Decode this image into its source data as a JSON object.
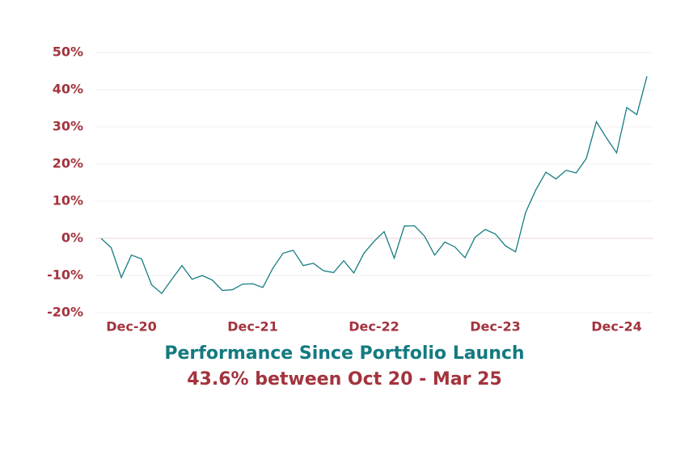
{
  "chart_data": {
    "type": "line",
    "title": "Performance Since Portfolio Launch",
    "subtitle": "43.6% between Oct 20 - Mar 25",
    "categories": [
      null,
      null,
      null,
      "Dec-20",
      null,
      null,
      null,
      null,
      null,
      null,
      null,
      null,
      null,
      null,
      null,
      "Dec-21",
      null,
      null,
      null,
      null,
      null,
      null,
      null,
      null,
      null,
      null,
      null,
      "Dec-22",
      null,
      null,
      null,
      null,
      null,
      null,
      null,
      null,
      null,
      null,
      null,
      "Dec-23",
      null,
      null,
      null,
      null,
      null,
      null,
      null,
      null,
      null,
      null,
      null,
      "Dec-24",
      null,
      null,
      null
    ],
    "series": [
      {
        "name": null,
        "color": "#167c82",
        "values": [
          0,
          -2.5,
          -10.5,
          -4.5,
          -5.5,
          -12.5,
          -14.8,
          -11,
          -7.3,
          -11,
          -10,
          -11.2,
          -14,
          -13.8,
          -12.3,
          -12.2,
          -13.2,
          -8,
          -4,
          -3.2,
          -7.3,
          -6.7,
          -8.7,
          -9.2,
          -6,
          -9.3,
          -4,
          -0.8,
          1.8,
          -5.3,
          3.3,
          3.4,
          0.6,
          -4.5,
          -1,
          -2.3,
          -5.2,
          0.3,
          2.4,
          1.2,
          -2,
          -3.6,
          7,
          13,
          17.8,
          16,
          18.3,
          17.6,
          21.5,
          31.4,
          27,
          23,
          35.2,
          33.3,
          43.6
        ]
      }
    ],
    "ylim": [
      -20,
      50
    ],
    "yticks": [
      {
        "value": -20,
        "label": "-20%"
      },
      {
        "value": -10,
        "label": "-10%"
      },
      {
        "value": 0,
        "label": "0%"
      },
      {
        "value": 10,
        "label": "10%"
      },
      {
        "value": 20,
        "label": "20%"
      },
      {
        "value": 30,
        "label": "30%"
      },
      {
        "value": 40,
        "label": "40%"
      },
      {
        "value": 50,
        "label": "50%"
      }
    ],
    "grid": true
  }
}
